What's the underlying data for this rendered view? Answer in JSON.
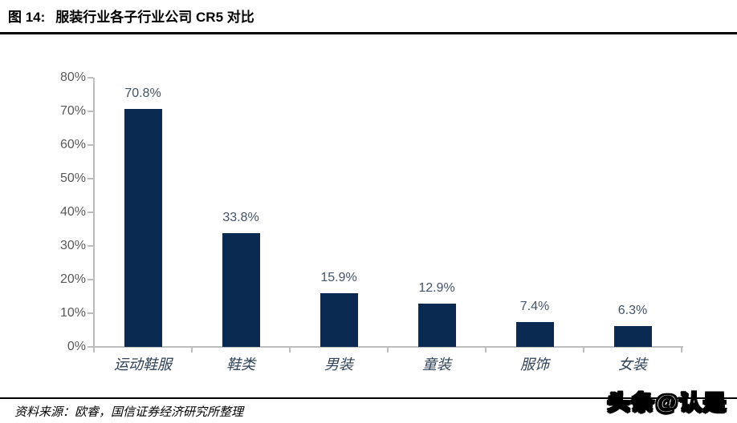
{
  "figure": {
    "title_prefix": "图 14:",
    "title": "服装行业各子行业公司 CR5 对比",
    "source": "资料来源：欧睿，国信证券经济研究所整理",
    "watermark": "头条@认是"
  },
  "chart_data": {
    "type": "bar",
    "title": "服装行业各子行业公司 CR5 对比",
    "categories": [
      "运动鞋服",
      "鞋类",
      "男装",
      "童装",
      "服饰",
      "女装"
    ],
    "values": [
      70.8,
      33.8,
      15.9,
      12.9,
      7.4,
      6.3
    ],
    "value_labels": [
      "70.8%",
      "33.8%",
      "15.9%",
      "12.9%",
      "7.4%",
      "6.3%"
    ],
    "y_tick_labels": [
      "80%",
      "70%",
      "60%",
      "50%",
      "40%",
      "30%",
      "20%",
      "10%",
      "0%"
    ],
    "ylim": [
      0,
      80
    ],
    "y_step": 10,
    "xlabel": "",
    "ylabel": "",
    "grid": false,
    "legend": "none",
    "bar_color": "#0b2a52",
    "value_label_color": "#44546a",
    "tick_label_color": "#595959",
    "axis_color": "#bdbdbd"
  }
}
